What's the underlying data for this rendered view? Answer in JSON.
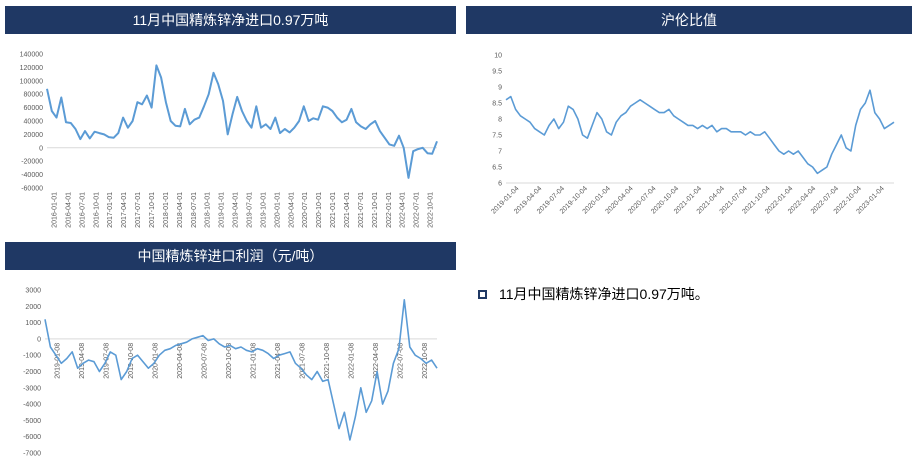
{
  "panels": [
    {
      "id": "p1",
      "header": "11月中国精炼锌净进口0.97万吨"
    },
    {
      "id": "p2",
      "header": "沪伦比值"
    },
    {
      "id": "p3",
      "header": "中国精炼锌进口利润（元/吨）"
    }
  ],
  "bullet_text": "11月中国精炼锌净进口0.97万吨。",
  "colors": {
    "header_bg": "#1f3864",
    "line": "#5b9bd5",
    "axis": "#d9d9d9"
  },
  "chart_data": [
    {
      "id": "net-import",
      "type": "line",
      "title": "11月中国精炼锌净进口0.97万吨",
      "ylim": [
        -60000,
        140000
      ],
      "yticks": [
        -60000,
        -40000,
        -20000,
        0,
        20000,
        40000,
        60000,
        80000,
        100000,
        120000,
        140000
      ],
      "x_tick_labels": [
        "2016-01-01",
        "2016-04-01",
        "2016-07-01",
        "2016-10-01",
        "2017-01-01",
        "2017-04-01",
        "2017-07-01",
        "2017-10-01",
        "2018-01-01",
        "2018-04-01",
        "2018-07-01",
        "2018-10-01",
        "2019-01-01",
        "2019-04-01",
        "2019-07-01",
        "2019-10-01",
        "2020-01-01",
        "2020-04-01",
        "2020-07-01",
        "2020-10-01",
        "2021-01-01",
        "2021-04-01",
        "2021-07-01",
        "2021-10-01",
        "2022-01-01",
        "2022-04-01",
        "2022-07-01",
        "2022-10-01"
      ],
      "values": [
        88000,
        55000,
        45000,
        75000,
        38000,
        37000,
        28000,
        13000,
        25000,
        14000,
        24000,
        22000,
        20000,
        16000,
        15000,
        22000,
        45000,
        30000,
        40000,
        68000,
        65000,
        78000,
        60000,
        123000,
        105000,
        68000,
        40000,
        33000,
        32000,
        58000,
        35000,
        42000,
        45000,
        62000,
        80000,
        112000,
        95000,
        70000,
        20000,
        50000,
        76000,
        55000,
        40000,
        30000,
        62000,
        30000,
        35000,
        28000,
        45000,
        22000,
        28000,
        23000,
        30000,
        40000,
        62000,
        40000,
        44000,
        42000,
        62000,
        60000,
        55000,
        45000,
        38000,
        42000,
        58000,
        38000,
        32000,
        28000,
        35000,
        40000,
        25000,
        15000,
        5000,
        3000,
        18000,
        0,
        -45000,
        -5000,
        -2000,
        0,
        -8000,
        -9000,
        9700
      ]
    },
    {
      "id": "shfe-lme-ratio",
      "type": "line",
      "title": "沪伦比值",
      "ylim": [
        6,
        10
      ],
      "yticks": [
        6,
        6.5,
        7,
        7.5,
        8,
        8.5,
        9,
        9.5,
        10
      ],
      "x_tick_labels": [
        "2019-01-04",
        "2019-04-04",
        "2019-07-04",
        "2019-10-04",
        "2020-01-04",
        "2020-04-04",
        "2020-07-04",
        "2020-10-04",
        "2021-01-04",
        "2021-04-04",
        "2021-07-04",
        "2021-10-04",
        "2022-01-04",
        "2022-04-04",
        "2022-07-04",
        "2022-10-04",
        "2023-01-04"
      ],
      "values": [
        8.6,
        8.7,
        8.3,
        8.1,
        8.0,
        7.9,
        7.7,
        7.6,
        7.5,
        7.8,
        8.0,
        7.7,
        7.9,
        8.4,
        8.3,
        8.0,
        7.5,
        7.4,
        7.8,
        8.2,
        8.0,
        7.6,
        7.5,
        7.9,
        8.1,
        8.2,
        8.4,
        8.5,
        8.6,
        8.5,
        8.4,
        8.3,
        8.2,
        8.2,
        8.3,
        8.1,
        8.0,
        7.9,
        7.8,
        7.8,
        7.7,
        7.8,
        7.7,
        7.8,
        7.6,
        7.7,
        7.7,
        7.6,
        7.6,
        7.6,
        7.5,
        7.6,
        7.5,
        7.5,
        7.6,
        7.4,
        7.2,
        7.0,
        6.9,
        7.0,
        6.9,
        7.0,
        6.8,
        6.6,
        6.5,
        6.3,
        6.4,
        6.5,
        6.9,
        7.2,
        7.5,
        7.1,
        7.0,
        7.8,
        8.3,
        8.5,
        8.9,
        8.2,
        8.0,
        7.7,
        7.8,
        7.9
      ]
    },
    {
      "id": "import-profit",
      "type": "line",
      "title": "中国精炼锌进口利润（元/吨）",
      "ylim": [
        -7000,
        3000
      ],
      "yticks": [
        -7000,
        -6000,
        -5000,
        -4000,
        -3000,
        -2000,
        -1000,
        0,
        1000,
        2000,
        3000
      ],
      "x_tick_labels": [
        "2019-01-08",
        "2019-04-08",
        "2019-07-08",
        "2019-10-08",
        "2020-01-08",
        "2020-04-08",
        "2020-07-08",
        "2020-10-08",
        "2021-01-08",
        "2021-04-08",
        "2021-07-08",
        "2021-10-08",
        "2022-01-08",
        "2022-04-08",
        "2022-07-08",
        "2022-10-08"
      ],
      "values": [
        1200,
        -500,
        -1000,
        -1500,
        -1200,
        -800,
        -1800,
        -1500,
        -1300,
        -1400,
        -2000,
        -1500,
        -800,
        -1000,
        -2500,
        -2000,
        -1200,
        -1000,
        -1400,
        -1800,
        -1500,
        -1000,
        -700,
        -600,
        -400,
        -300,
        -200,
        0,
        100,
        200,
        -100,
        0,
        -300,
        -500,
        -400,
        -600,
        -500,
        -700,
        -800,
        -600,
        -700,
        -900,
        -1200,
        -1000,
        -900,
        -800,
        -1500,
        -1800,
        -2200,
        -2500,
        -2000,
        -2600,
        -2500,
        -4000,
        -5500,
        -4500,
        -6200,
        -4800,
        -3000,
        -4500,
        -3800,
        -2000,
        -4000,
        -3200,
        -1500,
        -600,
        2400,
        -500,
        -1000,
        -1200,
        -1500,
        -1300,
        -1800
      ]
    }
  ]
}
